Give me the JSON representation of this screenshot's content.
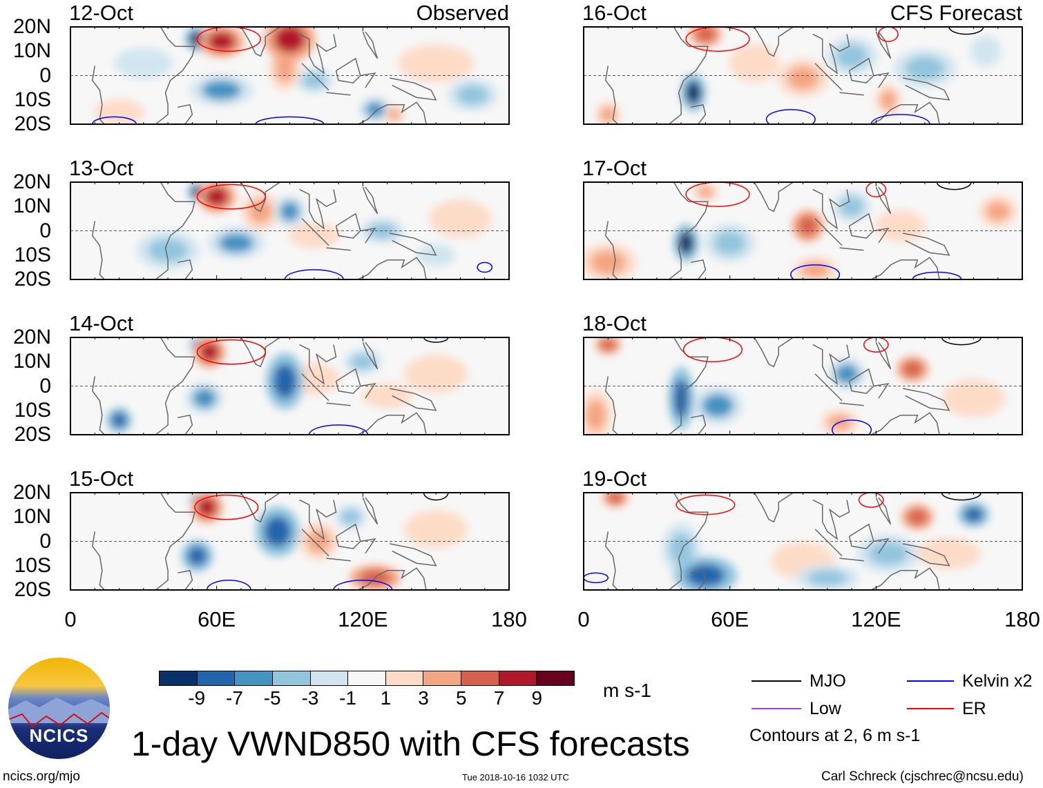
{
  "title": "1-day VWND850 with CFS forecasts",
  "observed_label": "Observed",
  "forecast_label": "CFS Forecast",
  "lat_labels": [
    "20N",
    "10N",
    "0",
    "10S",
    "20S"
  ],
  "lon_labels": [
    "0",
    "60E",
    "120E",
    "180"
  ],
  "colorbar": {
    "labels": [
      "-9",
      "-7",
      "-5",
      "-3",
      "-1",
      "1",
      "3",
      "5",
      "7",
      "9"
    ],
    "colors": [
      "#08306b",
      "#2166ac",
      "#4393c3",
      "#92c5de",
      "#d1e5f0",
      "#f7f7f7",
      "#fddbc7",
      "#f4a582",
      "#d6604d",
      "#b2182b",
      "#67001f"
    ],
    "units": "m s-1"
  },
  "legend": {
    "items": [
      {
        "label": "MJO",
        "color": "#000000"
      },
      {
        "label": "Kelvin x2",
        "color": "#0000ff"
      },
      {
        "label": "Low",
        "color": "#a040e0"
      },
      {
        "label": "ER",
        "color": "#ff0000"
      }
    ],
    "note": "Contours at 2, 6 m s-1"
  },
  "logo_text": "NCICS",
  "footer": {
    "url": "ncics.org/mjo",
    "timestamp": "Tue 2018-10-16 1032 UTC",
    "credit": "Carl Schreck (cjschrec@ncsu.edu)"
  },
  "chart_data": {
    "type": "heatmap",
    "variable": "850-hPa meridional wind anomaly",
    "lon_range": [
      0,
      180
    ],
    "lat_range": [
      -20,
      20
    ],
    "panels": [
      {
        "date": "12-Oct",
        "kind": "observed",
        "features": [
          [
            52,
            15,
            4,
            4,
            -9
          ],
          [
            62,
            14,
            7,
            5,
            9
          ],
          [
            90,
            15,
            8,
            7,
            8
          ],
          [
            88,
            3,
            5,
            7,
            5
          ],
          [
            62,
            -6,
            10,
            5,
            -5
          ],
          [
            100,
            -2,
            6,
            4,
            -3
          ],
          [
            125,
            -14,
            5,
            4,
            -5
          ],
          [
            133,
            -16,
            3,
            3,
            5
          ],
          [
            20,
            -15,
            8,
            4,
            3
          ],
          [
            30,
            5,
            15,
            8,
            -1
          ],
          [
            150,
            5,
            12,
            6,
            3
          ],
          [
            165,
            -8,
            8,
            5,
            -3
          ]
        ],
        "contours": [
          {
            "type": "ER",
            "lon": 65,
            "lat": 15,
            "rx": 13,
            "ry": 5
          },
          {
            "type": "Kelvin",
            "lon": 18,
            "lat": -20,
            "rx": 9,
            "ry": 3
          },
          {
            "type": "Kelvin",
            "lon": 90,
            "lat": -20,
            "rx": 14,
            "ry": 3
          }
        ]
      },
      {
        "date": "13-Oct",
        "kind": "observed",
        "features": [
          [
            52,
            16,
            3,
            3,
            -9
          ],
          [
            60,
            14,
            6,
            5,
            9
          ],
          [
            78,
            8,
            6,
            6,
            5
          ],
          [
            90,
            8,
            5,
            5,
            -5
          ],
          [
            68,
            -5,
            9,
            5,
            -5
          ],
          [
            100,
            -2,
            8,
            4,
            3
          ],
          [
            128,
            0,
            7,
            4,
            -3
          ],
          [
            40,
            -8,
            10,
            6,
            -3
          ],
          [
            150,
            -10,
            10,
            6,
            -1
          ],
          [
            160,
            5,
            10,
            6,
            3
          ]
        ],
        "contours": [
          {
            "type": "ER",
            "lon": 66,
            "lat": 14,
            "rx": 14,
            "ry": 5
          },
          {
            "type": "Kelvin",
            "lon": 100,
            "lat": -20,
            "rx": 12,
            "ry": 4
          },
          {
            "type": "Kelvin",
            "lon": 170,
            "lat": -15,
            "rx": 3,
            "ry": 2
          }
        ]
      },
      {
        "date": "14-Oct",
        "kind": "observed",
        "features": [
          [
            52,
            17,
            3,
            3,
            -5
          ],
          [
            57,
            14,
            5,
            5,
            9
          ],
          [
            88,
            2,
            6,
            9,
            -7
          ],
          [
            55,
            -5,
            6,
            5,
            -5
          ],
          [
            20,
            -14,
            4,
            4,
            -7
          ],
          [
            100,
            3,
            8,
            5,
            3
          ],
          [
            130,
            -4,
            8,
            4,
            3
          ],
          [
            150,
            5,
            10,
            6,
            3
          ],
          [
            120,
            10,
            6,
            4,
            -3
          ]
        ],
        "contours": [
          {
            "type": "ER",
            "lon": 66,
            "lat": 14,
            "rx": 14,
            "ry": 5
          },
          {
            "type": "Kelvin",
            "lon": 110,
            "lat": -20,
            "rx": 12,
            "ry": 4
          },
          {
            "type": "MJO",
            "lon": 150,
            "lat": 20,
            "rx": 5,
            "ry": 2
          }
        ]
      },
      {
        "date": "15-Oct",
        "kind": "observed",
        "features": [
          [
            52,
            17,
            3,
            3,
            -5
          ],
          [
            56,
            14,
            5,
            5,
            9
          ],
          [
            85,
            4,
            7,
            8,
            -7
          ],
          [
            52,
            -6,
            5,
            5,
            -7
          ],
          [
            102,
            0,
            6,
            6,
            5
          ],
          [
            125,
            -15,
            8,
            4,
            7
          ],
          [
            115,
            10,
            5,
            4,
            -3
          ],
          [
            150,
            5,
            10,
            6,
            3
          ]
        ],
        "contours": [
          {
            "type": "ER",
            "lon": 64,
            "lat": 14,
            "rx": 13,
            "ry": 5
          },
          {
            "type": "Kelvin",
            "lon": 65,
            "lat": -20,
            "rx": 9,
            "ry": 4
          },
          {
            "type": "Kelvin",
            "lon": 120,
            "lat": -20,
            "rx": 12,
            "ry": 4
          },
          {
            "type": "MJO",
            "lon": 150,
            "lat": 20,
            "rx": 5,
            "ry": 3
          }
        ]
      },
      {
        "date": "16-Oct",
        "kind": "forecast",
        "features": [
          [
            50,
            17,
            5,
            4,
            7
          ],
          [
            45,
            -7,
            4,
            6,
            -9
          ],
          [
            90,
            -1,
            8,
            6,
            5
          ],
          [
            125,
            -10,
            4,
            5,
            5
          ],
          [
            10,
            -16,
            4,
            4,
            5
          ],
          [
            70,
            5,
            8,
            6,
            3
          ],
          [
            140,
            3,
            10,
            6,
            -3
          ],
          [
            165,
            10,
            8,
            8,
            -1
          ],
          [
            110,
            8,
            8,
            6,
            -3
          ]
        ],
        "contours": [
          {
            "type": "ER",
            "lon": 55,
            "lat": 15,
            "rx": 13,
            "ry": 5
          },
          {
            "type": "ER",
            "lon": 125,
            "lat": 17,
            "rx": 4,
            "ry": 3
          },
          {
            "type": "Kelvin",
            "lon": 85,
            "lat": -18,
            "rx": 10,
            "ry": 4
          },
          {
            "type": "Kelvin",
            "lon": 130,
            "lat": -20,
            "rx": 12,
            "ry": 4
          },
          {
            "type": "MJO",
            "lon": 157,
            "lat": 20,
            "rx": 7,
            "ry": 3
          }
        ]
      },
      {
        "date": "17-Oct",
        "kind": "forecast",
        "features": [
          [
            50,
            16,
            4,
            3,
            5
          ],
          [
            42,
            -5,
            4,
            6,
            -9
          ],
          [
            92,
            2,
            5,
            5,
            7
          ],
          [
            10,
            -13,
            9,
            6,
            5
          ],
          [
            95,
            -16,
            7,
            4,
            5
          ],
          [
            60,
            -5,
            8,
            6,
            -3
          ],
          [
            130,
            2,
            8,
            5,
            3
          ],
          [
            170,
            8,
            6,
            5,
            5
          ],
          [
            110,
            10,
            6,
            5,
            -3
          ]
        ],
        "contours": [
          {
            "type": "ER",
            "lon": 55,
            "lat": 15,
            "rx": 13,
            "ry": 5
          },
          {
            "type": "ER",
            "lon": 120,
            "lat": 17,
            "rx": 4,
            "ry": 3
          },
          {
            "type": "Kelvin",
            "lon": 95,
            "lat": -18,
            "rx": 10,
            "ry": 4
          },
          {
            "type": "Kelvin",
            "lon": 145,
            "lat": -20,
            "rx": 10,
            "ry": 3
          },
          {
            "type": "MJO",
            "lon": 152,
            "lat": 20,
            "rx": 7,
            "ry": 3
          }
        ]
      },
      {
        "date": "18-Oct",
        "kind": "forecast",
        "features": [
          [
            10,
            17,
            4,
            3,
            7
          ],
          [
            40,
            -5,
            4,
            10,
            -7
          ],
          [
            55,
            -8,
            8,
            6,
            -5
          ],
          [
            135,
            7,
            5,
            4,
            7
          ],
          [
            108,
            5,
            6,
            5,
            -5
          ],
          [
            105,
            -15,
            6,
            4,
            5
          ],
          [
            5,
            -12,
            5,
            8,
            5
          ],
          [
            160,
            -5,
            10,
            6,
            3
          ]
        ],
        "contours": [
          {
            "type": "ER",
            "lon": 53,
            "lat": 15,
            "rx": 12,
            "ry": 5
          },
          {
            "type": "ER",
            "lon": 120,
            "lat": 17,
            "rx": 5,
            "ry": 3
          },
          {
            "type": "Kelvin",
            "lon": 110,
            "lat": -18,
            "rx": 8,
            "ry": 4
          },
          {
            "type": "MJO",
            "lon": 155,
            "lat": 20,
            "rx": 8,
            "ry": 3
          }
        ]
      },
      {
        "date": "19-Oct",
        "kind": "forecast",
        "features": [
          [
            13,
            18,
            4,
            3,
            7
          ],
          [
            50,
            -14,
            10,
            6,
            -7
          ],
          [
            40,
            -3,
            6,
            8,
            -3
          ],
          [
            137,
            10,
            5,
            4,
            7
          ],
          [
            160,
            11,
            5,
            4,
            -7
          ],
          [
            90,
            -8,
            10,
            6,
            3
          ],
          [
            100,
            -15,
            10,
            4,
            -3
          ],
          [
            125,
            -5,
            10,
            6,
            -3
          ],
          [
            150,
            -5,
            10,
            5,
            3
          ]
        ],
        "contours": [
          {
            "type": "ER",
            "lon": 50,
            "lat": 15,
            "rx": 12,
            "ry": 4
          },
          {
            "type": "ER",
            "lon": 118,
            "lat": 17,
            "rx": 5,
            "ry": 3
          },
          {
            "type": "Kelvin",
            "lon": 5,
            "lat": -15,
            "rx": 5,
            "ry": 2
          },
          {
            "type": "MJO",
            "lon": 155,
            "lat": 20,
            "rx": 8,
            "ry": 3
          }
        ]
      }
    ]
  }
}
